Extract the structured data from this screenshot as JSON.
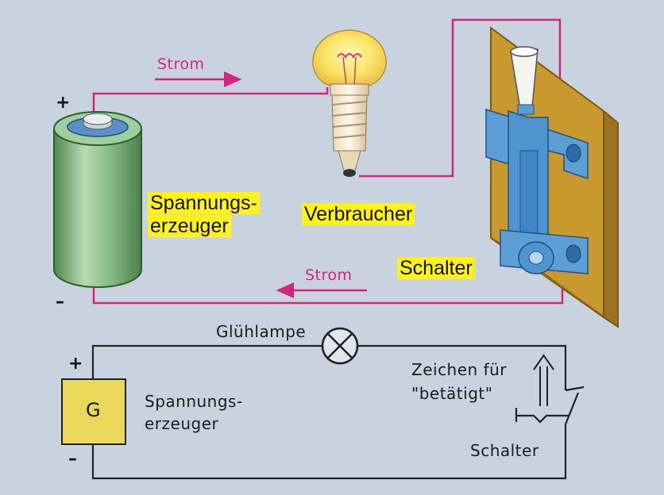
{
  "top": {
    "strom_top": "Strom",
    "strom_bottom": "Strom",
    "plus": "+",
    "minus": "–",
    "label_generator_line1": "Spannungs-",
    "label_generator_line2": "erzeuger",
    "label_consumer": "Verbraucher",
    "label_switch": "Schalter"
  },
  "schematic": {
    "lamp_label": "Glühlampe",
    "plus": "+",
    "minus": "–",
    "generator_symbol": "G",
    "generator_line1": "Spannungs-",
    "generator_line2": "erzeuger",
    "actuated_line1": "Zeichen für",
    "actuated_line2": "\"betätigt\"",
    "switch_label": "Schalter"
  },
  "colors": {
    "background": "#c9d3df",
    "wire": "#d4257e",
    "highlight": "#fff21a",
    "battery": "#7cb07a",
    "switch_metal": "#5b9fd6",
    "board": "#c8992e",
    "generator_box": "#e9d85a"
  },
  "icons": [
    "battery-icon",
    "light-bulb-icon",
    "toggle-switch-icon",
    "lamp-symbol-icon",
    "switch-symbol-icon"
  ]
}
